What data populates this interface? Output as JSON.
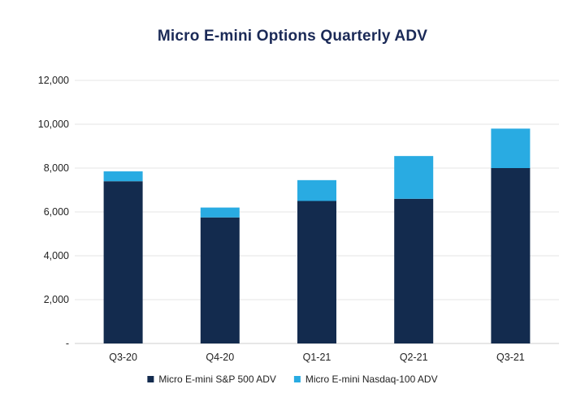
{
  "chart_data": {
    "type": "bar",
    "stacked": true,
    "title": "Micro E-mini Options Quarterly ADV",
    "categories": [
      "Q3-20",
      "Q4-20",
      "Q1-21",
      "Q2-21",
      "Q3-21"
    ],
    "series": [
      {
        "name": "Micro E-mini S&P 500 ADV",
        "color": "#132b4e",
        "values": [
          7400,
          5750,
          6500,
          6600,
          8000
        ]
      },
      {
        "name": "Micro E-mini Nasdaq-100 ADV",
        "color": "#29abe2",
        "values": [
          450,
          450,
          950,
          1950,
          1800
        ]
      }
    ],
    "ylim": [
      0,
      12000
    ],
    "yticks": [
      0,
      2000,
      4000,
      6000,
      8000,
      10000,
      12000
    ],
    "ytick_labels": [
      "-",
      "2,000",
      "4,000",
      "6,000",
      "8,000",
      "10,000",
      "12,000"
    ],
    "xlabel": "",
    "ylabel": "",
    "grid": true,
    "legend_position": "bottom"
  }
}
